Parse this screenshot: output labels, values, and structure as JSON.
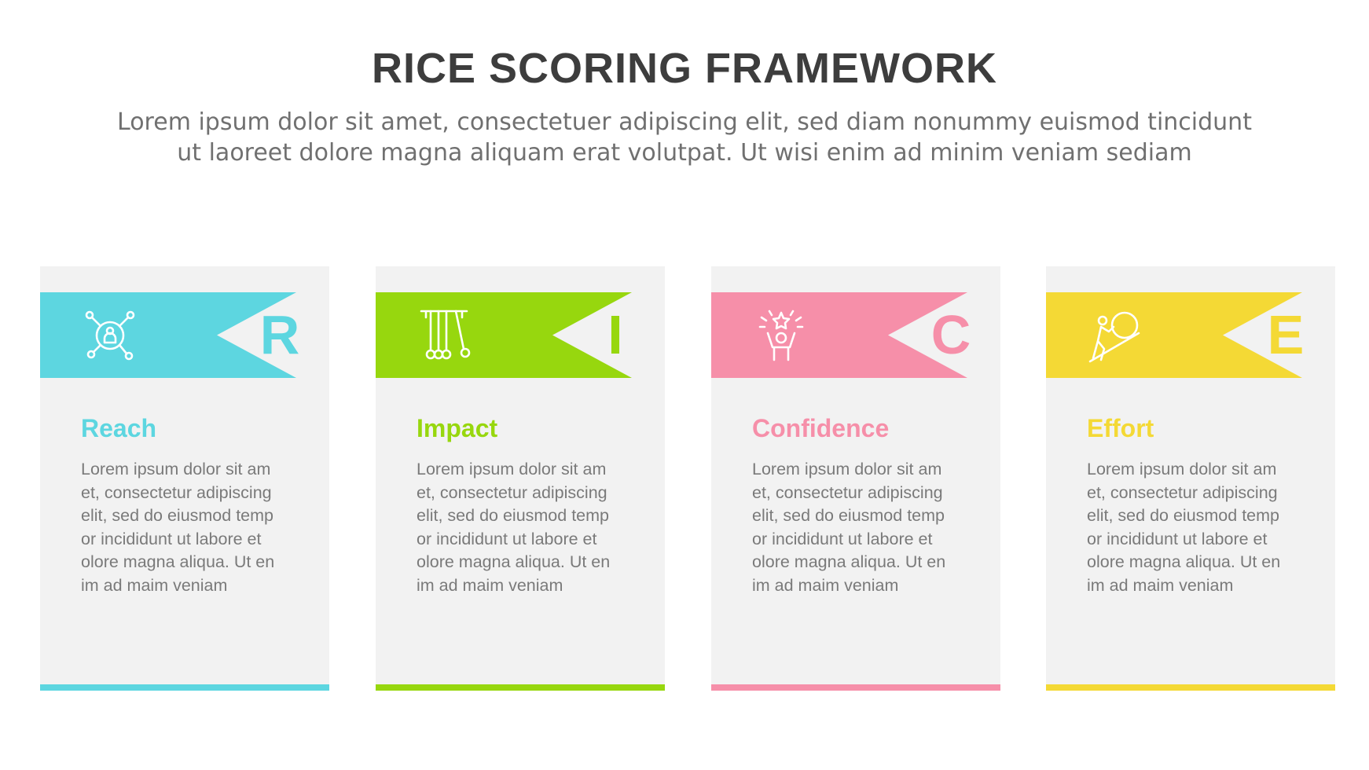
{
  "title": "RICE SCORING FRAMEWORK",
  "subtitle": {
    "line1": "Lorem ipsum dolor sit amet, consectetuer adipiscing elit, sed diam nonummy euismod tincidunt",
    "line2": "ut laoreet dolore magna aliquam erat volutpat. Ut wisi enim ad minim veniam sediam"
  },
  "cards": [
    {
      "letter": "R",
      "heading": "Reach",
      "color": "#5dd6e0",
      "icon": "network-person-icon",
      "body": "Lorem ipsum dolor sit am et, consectetur adipiscing elit, sed do eiusmod temp or incididunt ut labore et olore magna aliqua. Ut en im ad maim veniam"
    },
    {
      "letter": "I",
      "heading": "Impact",
      "color": "#97d70e",
      "icon": "newtons-cradle-icon",
      "body": "Lorem ipsum dolor sit am et, consectetur adipiscing elit, sed do eiusmod temp or incididunt ut labore et olore magna aliqua. Ut en im ad maim veniam"
    },
    {
      "letter": "C",
      "heading": "Confidence",
      "color": "#f68fa9",
      "icon": "person-star-icon",
      "body": "Lorem ipsum dolor sit am et, consectetur adipiscing elit, sed do eiusmod temp or incididunt ut labore et olore magna aliqua. Ut en im ad maim veniam"
    },
    {
      "letter": "E",
      "heading": "Effort",
      "color": "#f4d935",
      "icon": "person-pushing-boulder-icon",
      "body": "Lorem ipsum dolor sit am et, consectetur adipiscing elit, sed do eiusmod temp or incididunt ut labore et olore magna aliqua. Ut en im ad maim veniam"
    }
  ]
}
